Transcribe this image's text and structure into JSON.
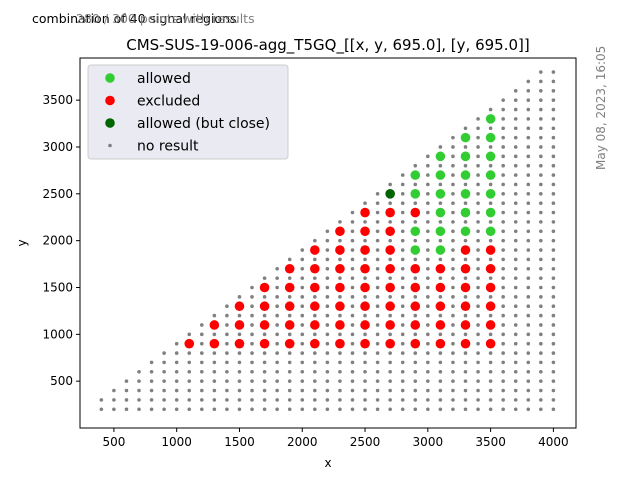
{
  "notes": {
    "left": "combination of 40 signal regions",
    "overlay": "280 / 300 points with results"
  },
  "timestamp": "May 08, 2023, 16:05",
  "colors": {
    "allowed": "#32cd32",
    "excluded": "#ff0000",
    "allowed_close": "#006400",
    "no_result": "#808080"
  },
  "chart_data": {
    "type": "scatter",
    "title": "CMS-SUS-19-006-agg_T5GQ_[[x, y, 695.0], [y, 695.0]]",
    "xlabel": "x",
    "ylabel": "y",
    "xlim": [
      230,
      4180
    ],
    "ylim": [
      0,
      3950
    ],
    "xticks": [
      500,
      1000,
      1500,
      2000,
      2500,
      3000,
      3500,
      4000
    ],
    "yticks": [
      500,
      1000,
      1500,
      2000,
      2500,
      3000,
      3500
    ],
    "grid": false,
    "legend_position": "top-left",
    "legend": [
      {
        "label": "allowed",
        "key": "allowed"
      },
      {
        "label": "excluded",
        "key": "excluded"
      },
      {
        "label": "allowed (but close)",
        "key": "allowed_close"
      },
      {
        "label": "no result",
        "key": "no_result"
      }
    ],
    "series": [
      {
        "name": "allowed",
        "points": [
          [
            2900,
            1900
          ],
          [
            2900,
            2100
          ],
          [
            2900,
            2500
          ],
          [
            2900,
            2700
          ],
          [
            3100,
            1900
          ],
          [
            3100,
            2100
          ],
          [
            3100,
            2300
          ],
          [
            3100,
            2500
          ],
          [
            3100,
            2700
          ],
          [
            3100,
            2900
          ],
          [
            3300,
            2100
          ],
          [
            3300,
            2300
          ],
          [
            3300,
            2500
          ],
          [
            3300,
            2700
          ],
          [
            3300,
            2900
          ],
          [
            3300,
            3100
          ],
          [
            3500,
            2100
          ],
          [
            3500,
            2300
          ],
          [
            3500,
            2500
          ],
          [
            3500,
            2700
          ],
          [
            3500,
            2900
          ],
          [
            3500,
            3100
          ],
          [
            3500,
            3300
          ]
        ]
      },
      {
        "name": "excluded",
        "points": [
          [
            1100,
            900
          ],
          [
            1300,
            900
          ],
          [
            1300,
            1100
          ],
          [
            1500,
            900
          ],
          [
            1500,
            1100
          ],
          [
            1500,
            1300
          ],
          [
            1700,
            900
          ],
          [
            1700,
            1100
          ],
          [
            1700,
            1300
          ],
          [
            1700,
            1500
          ],
          [
            1900,
            900
          ],
          [
            1900,
            1100
          ],
          [
            1900,
            1300
          ],
          [
            1900,
            1500
          ],
          [
            1900,
            1700
          ],
          [
            2100,
            900
          ],
          [
            2100,
            1100
          ],
          [
            2100,
            1300
          ],
          [
            2100,
            1500
          ],
          [
            2100,
            1700
          ],
          [
            2100,
            1900
          ],
          [
            2300,
            900
          ],
          [
            2300,
            1100
          ],
          [
            2300,
            1300
          ],
          [
            2300,
            1500
          ],
          [
            2300,
            1700
          ],
          [
            2300,
            1900
          ],
          [
            2300,
            2100
          ],
          [
            2500,
            900
          ],
          [
            2500,
            1100
          ],
          [
            2500,
            1300
          ],
          [
            2500,
            1500
          ],
          [
            2500,
            1700
          ],
          [
            2500,
            1900
          ],
          [
            2500,
            2100
          ],
          [
            2500,
            2300
          ],
          [
            2700,
            900
          ],
          [
            2700,
            1100
          ],
          [
            2700,
            1300
          ],
          [
            2700,
            1500
          ],
          [
            2700,
            1700
          ],
          [
            2700,
            1900
          ],
          [
            2700,
            2100
          ],
          [
            2700,
            2300
          ],
          [
            2900,
            900
          ],
          [
            2900,
            1100
          ],
          [
            2900,
            1300
          ],
          [
            2900,
            1500
          ],
          [
            2900,
            1700
          ],
          [
            2900,
            2300
          ],
          [
            3100,
            900
          ],
          [
            3100,
            1100
          ],
          [
            3100,
            1300
          ],
          [
            3100,
            1500
          ],
          [
            3100,
            1700
          ],
          [
            3300,
            900
          ],
          [
            3300,
            1100
          ],
          [
            3300,
            1300
          ],
          [
            3300,
            1500
          ],
          [
            3300,
            1700
          ],
          [
            3300,
            1900
          ],
          [
            3500,
            900
          ],
          [
            3500,
            1100
          ],
          [
            3500,
            1300
          ],
          [
            3500,
            1500
          ],
          [
            3500,
            1700
          ],
          [
            3500,
            1900
          ]
        ]
      },
      {
        "name": "allowed (but close)",
        "points": [
          [
            2700,
            2500
          ]
        ]
      },
      {
        "name": "no result",
        "x_range": [
          400,
          4000
        ],
        "x_step": 100,
        "y_range": [
          200,
          3800
        ],
        "y_step": 100,
        "rule": "grid points with y < x, excluding the coloured points"
      }
    ]
  }
}
